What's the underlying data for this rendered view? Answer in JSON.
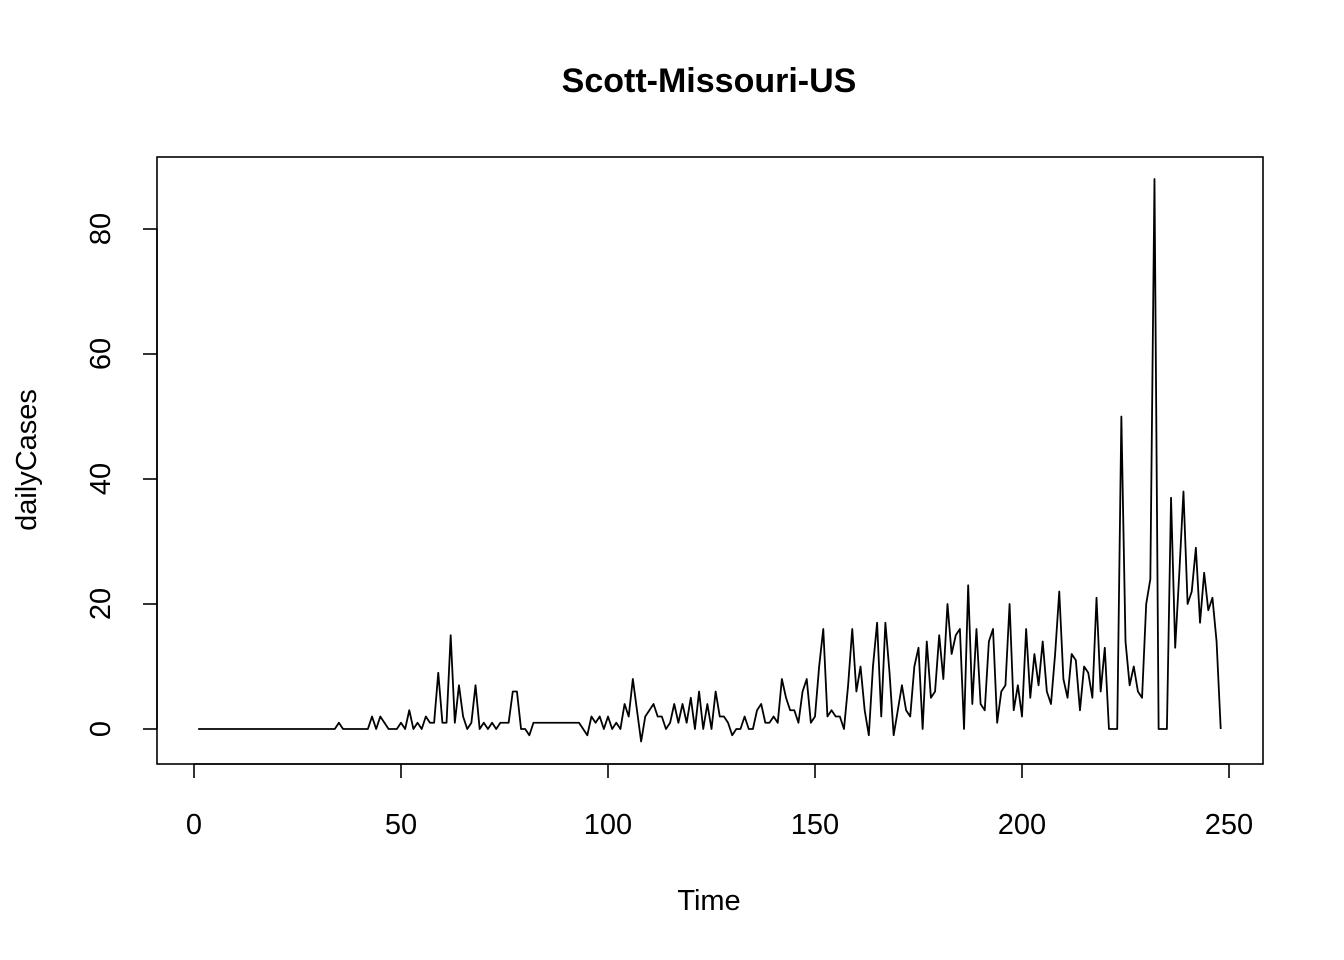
{
  "chart_data": {
    "type": "line",
    "title": "Scott-Missouri-US",
    "xlabel": "Time",
    "ylabel": "dailyCases",
    "xlim": [
      1,
      248
    ],
    "ylim": [
      -2,
      88
    ],
    "xticks": [
      0,
      50,
      100,
      150,
      200,
      250
    ],
    "yticks": [
      0,
      20,
      40,
      60,
      80
    ],
    "grid": false,
    "legend": "none",
    "line_color": "#000000",
    "series": [
      {
        "x_start": 1,
        "values": [
          0,
          0,
          0,
          0,
          0,
          0,
          0,
          0,
          0,
          0,
          0,
          0,
          0,
          0,
          0,
          0,
          0,
          0,
          0,
          0,
          0,
          0,
          0,
          0,
          0,
          0,
          0,
          0,
          0,
          0,
          0,
          0,
          0,
          0,
          1,
          0,
          0,
          0,
          0,
          0,
          0,
          0,
          2,
          0,
          2,
          1,
          0,
          0,
          0,
          1,
          0,
          3,
          0,
          1,
          0,
          2,
          1,
          1,
          9,
          1,
          1,
          15,
          1,
          7,
          2,
          0,
          1,
          7,
          0,
          1,
          0,
          1,
          0,
          1,
          1,
          1,
          6,
          6,
          0,
          0,
          -1,
          1,
          1,
          1,
          1,
          1,
          1,
          1,
          1,
          1,
          1,
          1,
          1,
          0,
          -1,
          2,
          1,
          2,
          0,
          2,
          0,
          1,
          0,
          4,
          2,
          8,
          3,
          -2,
          2,
          3,
          4,
          2,
          2,
          0,
          1,
          4,
          1,
          4,
          1,
          5,
          0,
          6,
          0,
          4,
          0,
          6,
          2,
          2,
          1,
          -1,
          0,
          0,
          2,
          0,
          0,
          3,
          4,
          1,
          1,
          2,
          1,
          8,
          5,
          3,
          3,
          1,
          6,
          8,
          1,
          2,
          10,
          16,
          2,
          3,
          2,
          2,
          0,
          7,
          16,
          6,
          10,
          3,
          -1,
          10,
          17,
          2,
          17,
          9,
          -1,
          3,
          7,
          3,
          2,
          10,
          13,
          0,
          14,
          5,
          6,
          15,
          8,
          20,
          12,
          15,
          16,
          0,
          23,
          4,
          16,
          4,
          3,
          14,
          16,
          1,
          6,
          7,
          20,
          3,
          7,
          2,
          16,
          5,
          12,
          7,
          14,
          6,
          4,
          12,
          22,
          8,
          5,
          12,
          11,
          3,
          10,
          9,
          5,
          21,
          6,
          13,
          0,
          0,
          0,
          50,
          14,
          7,
          10,
          6,
          5,
          20,
          24,
          88,
          0,
          0,
          0,
          37,
          13,
          25,
          38,
          20,
          22,
          29,
          17,
          25,
          19,
          21,
          14,
          0
        ]
      }
    ]
  }
}
